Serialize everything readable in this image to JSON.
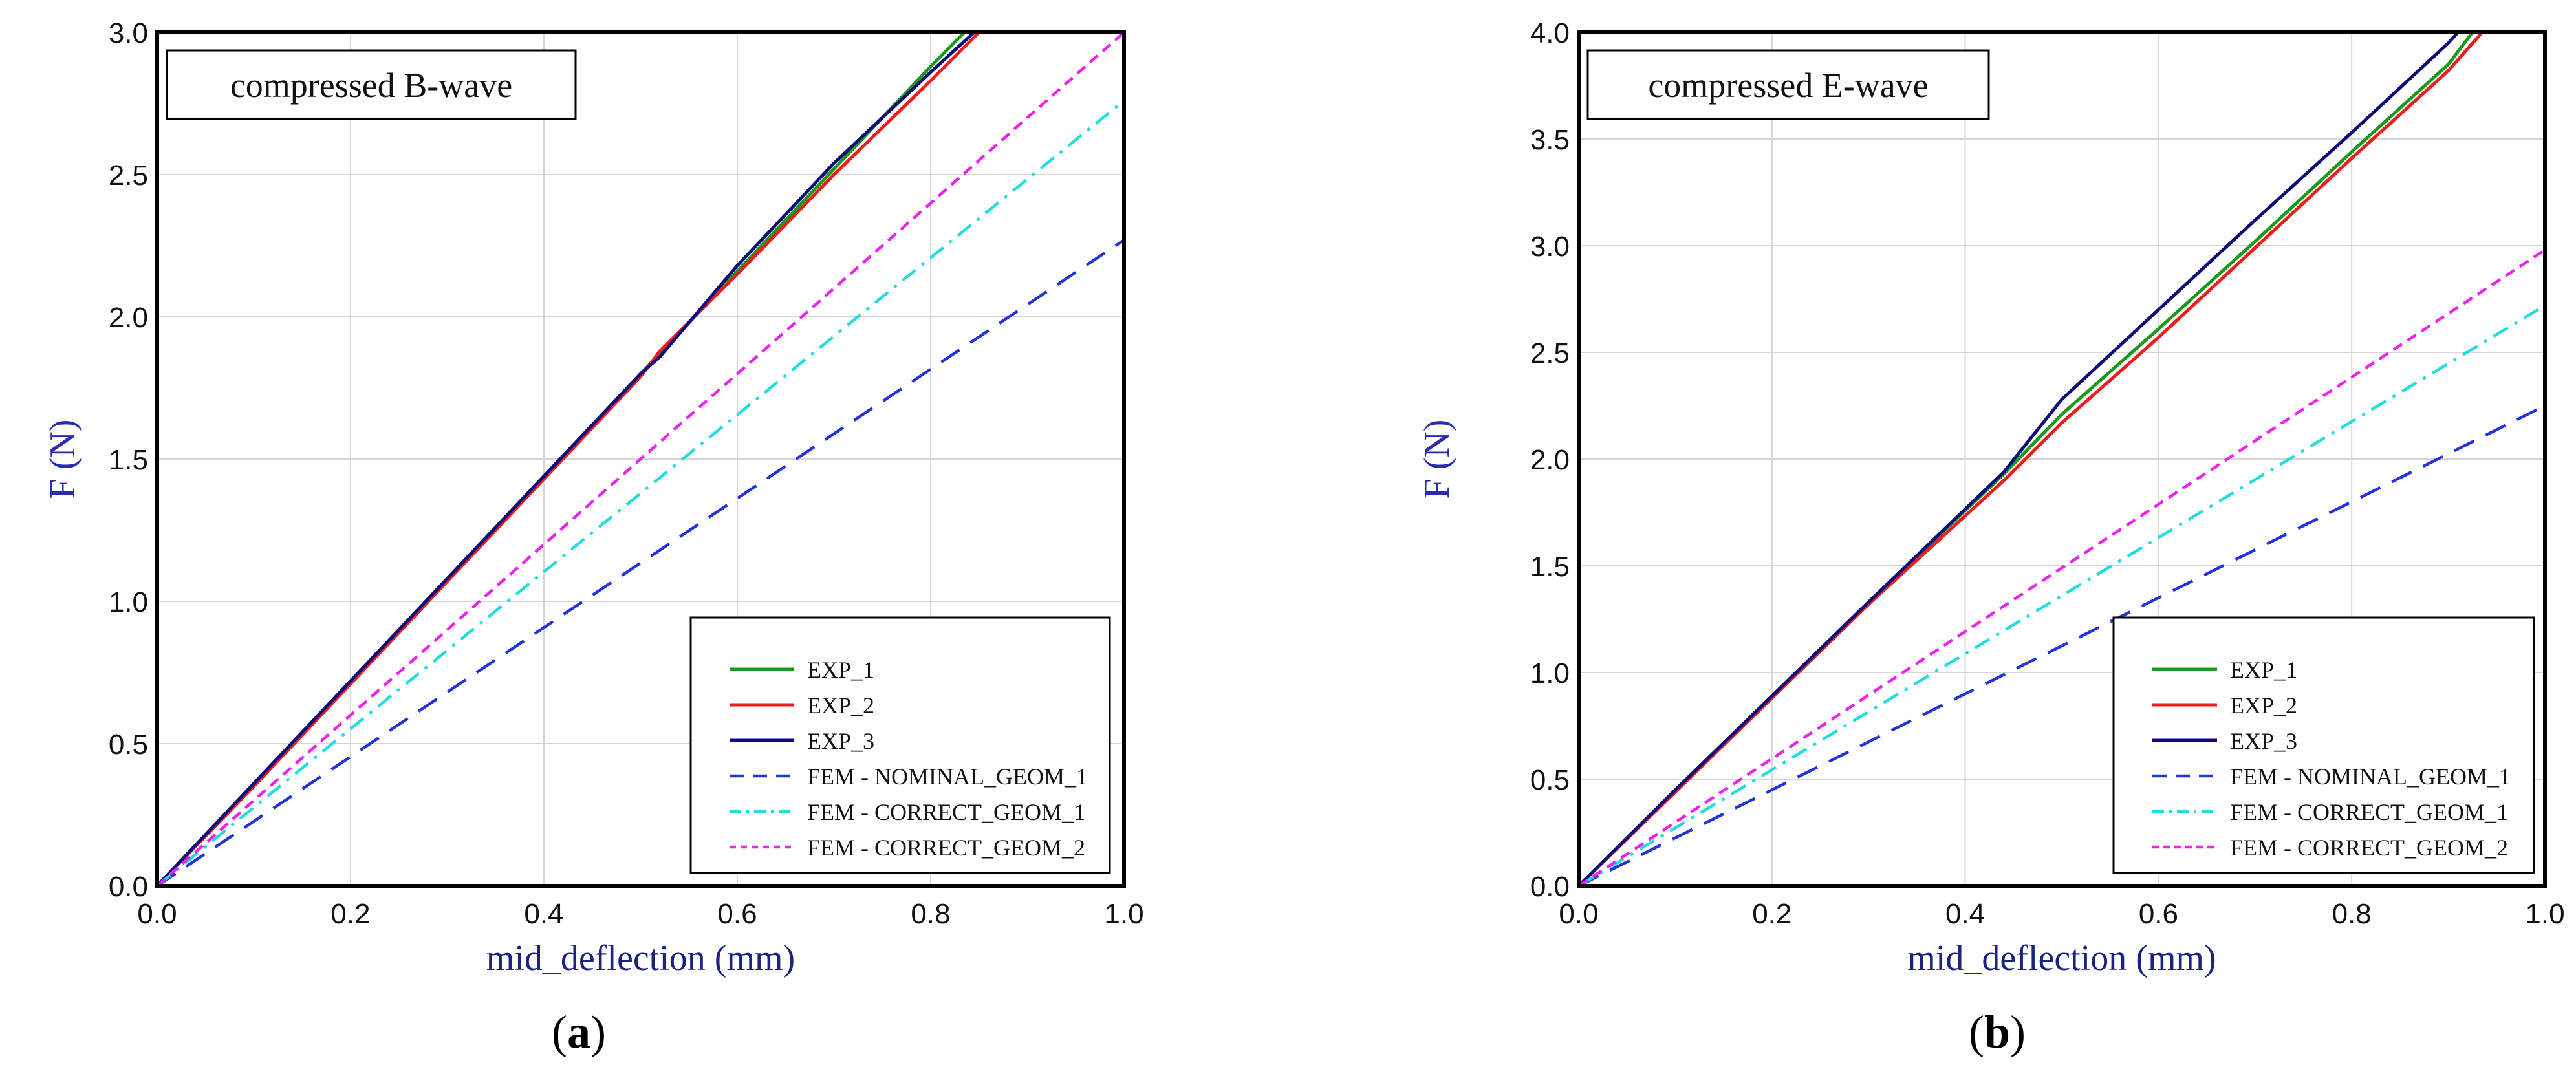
{
  "chart_data": [
    {
      "type": "line",
      "panel_caption": {
        "open": "(",
        "letter": "a",
        "close": ")"
      },
      "title": "compressed B-wave",
      "xlabel": "mid_deflection (mm)",
      "ylabel": "F (N)",
      "xlim": [
        0.0,
        1.0
      ],
      "ylim": [
        0.0,
        3.0
      ],
      "x_ticks": [
        "0.0",
        "0.2",
        "0.4",
        "0.6",
        "0.8",
        "1.0"
      ],
      "y_ticks": [
        "0.0",
        "0.5",
        "1.0",
        "1.5",
        "2.0",
        "2.5",
        "3.0"
      ],
      "grid": true,
      "legend_position": "bottom-right",
      "series": [
        {
          "name": "EXP_1",
          "color": "#1a9a1a",
          "dash": "solid",
          "x": [
            0.0,
            0.1,
            0.2,
            0.3,
            0.4,
            0.5,
            0.52,
            0.6,
            0.7,
            0.8,
            0.835
          ],
          "y": [
            0.0,
            0.36,
            0.72,
            1.08,
            1.44,
            1.8,
            1.87,
            2.16,
            2.52,
            2.88,
            3.0
          ]
        },
        {
          "name": "EXP_2",
          "color": "#ee1c1c",
          "dash": "solid",
          "x": [
            0.0,
            0.1,
            0.2,
            0.3,
            0.4,
            0.5,
            0.52,
            0.6,
            0.7,
            0.8,
            0.85
          ],
          "y": [
            0.0,
            0.35,
            0.71,
            1.07,
            1.43,
            1.79,
            1.88,
            2.15,
            2.5,
            2.83,
            3.0
          ]
        },
        {
          "name": "EXP_3",
          "color": "#0d0d7a",
          "dash": "solid",
          "x": [
            0.0,
            0.1,
            0.2,
            0.3,
            0.4,
            0.5,
            0.52,
            0.6,
            0.7,
            0.8,
            0.845
          ],
          "y": [
            0.0,
            0.36,
            0.72,
            1.08,
            1.44,
            1.8,
            1.86,
            2.18,
            2.54,
            2.86,
            3.0
          ]
        },
        {
          "name": "FEM - NOMINAL_GEOM_1",
          "color": "#2233dd",
          "dash": "dashed",
          "x": [
            0.0,
            1.0
          ],
          "y": [
            0.0,
            2.27
          ]
        },
        {
          "name": "FEM - CORRECT_GEOM_1",
          "color": "#22dddd",
          "dash": "dashdot",
          "x": [
            0.0,
            1.0
          ],
          "y": [
            0.0,
            2.76
          ]
        },
        {
          "name": "FEM - CORRECT_GEOM_2",
          "color": "#ee22ee",
          "dash": "dotted",
          "x": [
            0.0,
            1.0
          ],
          "y": [
            0.0,
            3.0
          ]
        }
      ]
    },
    {
      "type": "line",
      "panel_caption": {
        "open": "(",
        "letter": "b",
        "close": ")"
      },
      "title": "compressed E-wave",
      "xlabel": "mid_deflection (mm)",
      "ylabel": "F (N)",
      "xlim": [
        0.0,
        1.0
      ],
      "ylim": [
        0.0,
        4.0
      ],
      "x_ticks": [
        "0.0",
        "0.2",
        "0.4",
        "0.6",
        "0.8",
        "1.0"
      ],
      "y_ticks": [
        "0.0",
        "0.5",
        "1.0",
        "1.5",
        "2.0",
        "2.5",
        "3.0",
        "3.5",
        "4.0"
      ],
      "grid": true,
      "legend_position": "bottom-right",
      "series": [
        {
          "name": "EXP_1",
          "color": "#1a9a1a",
          "dash": "solid",
          "x": [
            0.0,
            0.1,
            0.2,
            0.3,
            0.44,
            0.5,
            0.6,
            0.7,
            0.8,
            0.9,
            0.925
          ],
          "y": [
            0.0,
            0.45,
            0.89,
            1.33,
            1.93,
            2.21,
            2.61,
            3.02,
            3.44,
            3.85,
            4.0
          ]
        },
        {
          "name": "EXP_2",
          "color": "#ee1c1c",
          "dash": "solid",
          "x": [
            0.0,
            0.1,
            0.2,
            0.3,
            0.44,
            0.5,
            0.6,
            0.7,
            0.8,
            0.9,
            0.935
          ],
          "y": [
            0.0,
            0.44,
            0.88,
            1.32,
            1.9,
            2.17,
            2.57,
            2.99,
            3.41,
            3.82,
            4.0
          ]
        },
        {
          "name": "EXP_3",
          "color": "#0d0d7a",
          "dash": "solid",
          "x": [
            0.0,
            0.1,
            0.2,
            0.3,
            0.44,
            0.5,
            0.6,
            0.7,
            0.8,
            0.9,
            0.91
          ],
          "y": [
            0.0,
            0.45,
            0.89,
            1.33,
            1.94,
            2.28,
            2.7,
            3.12,
            3.53,
            3.95,
            4.0
          ]
        },
        {
          "name": "FEM - NOMINAL_GEOM_1",
          "color": "#2233dd",
          "dash": "dashed",
          "x": [
            0.0,
            1.0
          ],
          "y": [
            0.0,
            2.25
          ]
        },
        {
          "name": "FEM - CORRECT_GEOM_1",
          "color": "#22dddd",
          "dash": "dashdot",
          "x": [
            0.0,
            1.0
          ],
          "y": [
            0.0,
            2.72
          ]
        },
        {
          "name": "FEM - CORRECT_GEOM_2",
          "color": "#ee22ee",
          "dash": "dotted",
          "x": [
            0.0,
            1.0
          ],
          "y": [
            0.0,
            2.98
          ]
        }
      ]
    }
  ]
}
